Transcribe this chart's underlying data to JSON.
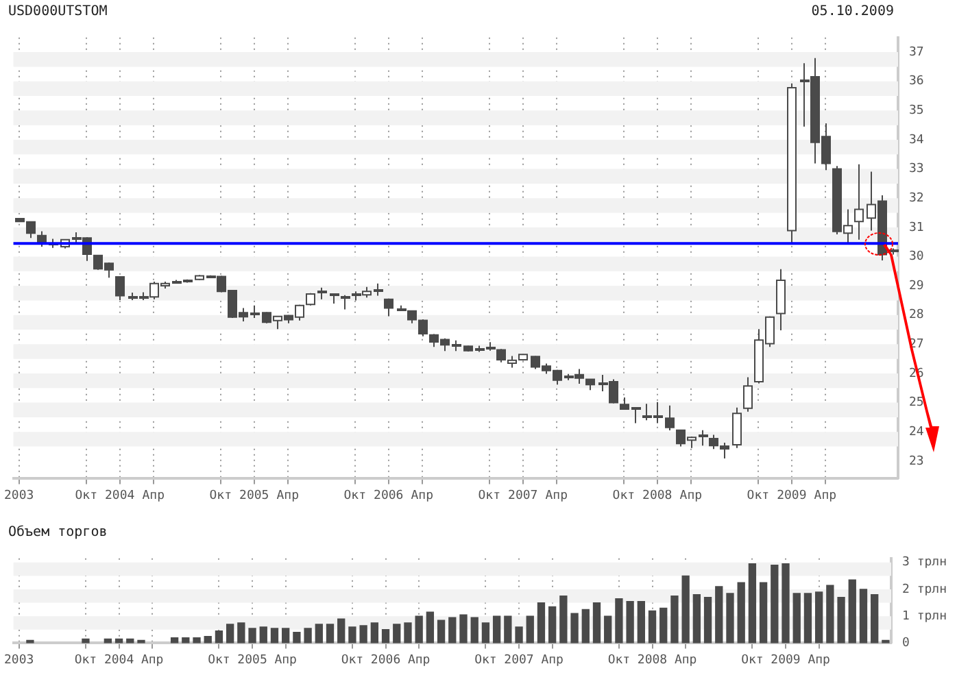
{
  "chart_data": [
    {
      "type": "candlestick",
      "title": "USD000UTSTOM",
      "subtitle": "05.10.2009",
      "color": "#4a4a4a",
      "colors": [
        "#4a4a4a",
        "#4a4a4a",
        "#4a4a4a",
        "#4a4a4a",
        "#ffffff",
        "#4a4a4a",
        "#4a4a4a",
        "#4a4a4a",
        "#4a4a4a",
        "#4a4a4a",
        "#4a4a4a",
        "#4a4a4a",
        "#ffffff",
        "#ffffff",
        "#4a4a4a",
        "#4a4a4a",
        "#ffffff",
        "#4a4a4a",
        "#4a4a4a",
        "#4a4a4a",
        "#4a4a4a",
        "#4a4a4a",
        "#4a4a4a",
        "#ffffff",
        "#4a4a4a",
        "#ffffff",
        "#ffffff",
        "#4a4a4a",
        "#4a4a4a",
        "#4a4a4a",
        "#4a4a4a",
        "#ffffff",
        "#4a4a4a",
        "#4a4a4a",
        "#4a4a4a",
        "#4a4a4a",
        "#4a4a4a",
        "#4a4a4a",
        "#4a4a4a",
        "#4a4a4a",
        "#4a4a4a",
        "#4a4a4a",
        "#4a4a4a",
        "#4a4a4a",
        "#ffffff",
        "#ffffff",
        "#4a4a4a",
        "#4a4a4a",
        "#4a4a4a",
        "#4a4a4a",
        "#4a4a4a",
        "#4a4a4a",
        "#4a4a4a",
        "#4a4a4a",
        "#4a4a4a",
        "#4a4a4a",
        "#4a4a4a",
        "#4a4a4a",
        "#4a4a4a",
        "#4a4a4a",
        "#ffffff",
        "#4a4a4a",
        "#4a4a4a",
        "#4a4a4a",
        "#ffffff",
        "#ffffff",
        "#ffffff",
        "#ffffff",
        "#ffffff",
        "#ffffff",
        "#4a4a4a",
        "#4a4a4a",
        "#4a4a4a",
        "#4a4a4a",
        "#ffffff",
        "#ffffff",
        "#ffffff",
        "#4a4a4a",
        "#4a4a4a"
      ],
      "categories": [
        "2003",
        null,
        null,
        null,
        null,
        null,
        "Окт",
        null,
        null,
        "2004",
        null,
        null,
        "Апр",
        null,
        null,
        null,
        null,
        null,
        "Окт",
        null,
        null,
        "2005",
        null,
        null,
        "Апр",
        null,
        null,
        null,
        null,
        null,
        "Окт",
        null,
        null,
        "2006",
        null,
        null,
        "Апр",
        null,
        null,
        null,
        null,
        null,
        "Окт",
        null,
        null,
        "2007",
        null,
        null,
        "Апр",
        null,
        null,
        null,
        null,
        null,
        "Окт",
        null,
        null,
        "2008",
        null,
        null,
        "Апр",
        null,
        null,
        null,
        null,
        null,
        "Окт",
        null,
        null,
        "2009",
        null,
        null,
        "Апр",
        null,
        null,
        null,
        null,
        null,
        null
      ],
      "ohlc": [
        [
          31.3,
          31.3,
          31.2,
          31.2
        ],
        [
          31.19,
          31.19,
          30.64,
          30.8
        ],
        [
          30.72,
          30.87,
          30.34,
          30.48
        ],
        [
          30.42,
          30.61,
          30.3,
          30.4
        ],
        [
          30.34,
          30.58,
          30.28,
          30.58
        ],
        [
          30.64,
          30.83,
          30.48,
          30.62
        ],
        [
          30.64,
          30.66,
          29.85,
          30.08
        ],
        [
          30.04,
          30.04,
          29.55,
          29.58
        ],
        [
          29.77,
          29.8,
          29.28,
          29.55
        ],
        [
          29.31,
          29.31,
          28.51,
          28.66
        ],
        [
          28.62,
          28.77,
          28.51,
          28.6
        ],
        [
          28.6,
          28.78,
          28.51,
          28.6
        ],
        [
          28.62,
          29.14,
          28.54,
          29.08
        ],
        [
          29.0,
          29.14,
          28.91,
          29.08
        ],
        [
          29.13,
          29.2,
          29.08,
          29.14
        ],
        [
          29.16,
          29.22,
          29.11,
          29.17
        ],
        [
          29.22,
          29.37,
          29.2,
          29.34
        ],
        [
          29.32,
          29.36,
          29.3,
          29.31
        ],
        [
          29.32,
          29.34,
          28.78,
          28.81
        ],
        [
          28.84,
          28.84,
          27.9,
          27.93
        ],
        [
          28.08,
          28.24,
          27.78,
          27.94
        ],
        [
          28.04,
          28.33,
          27.9,
          28.05
        ],
        [
          28.08,
          28.1,
          27.72,
          27.75
        ],
        [
          27.81,
          27.96,
          27.52,
          27.95
        ],
        [
          27.98,
          28.0,
          27.72,
          27.84
        ],
        [
          27.93,
          28.35,
          27.81,
          28.33
        ],
        [
          28.36,
          28.75,
          28.33,
          28.72
        ],
        [
          28.78,
          28.94,
          28.54,
          28.78
        ],
        [
          28.68,
          28.7,
          28.39,
          28.68
        ],
        [
          28.6,
          28.68,
          28.19,
          28.58
        ],
        [
          28.68,
          28.81,
          28.5,
          28.69
        ],
        [
          28.69,
          28.96,
          28.6,
          28.81
        ],
        [
          28.83,
          29.08,
          28.66,
          28.85
        ],
        [
          28.54,
          28.56,
          27.96,
          28.24
        ],
        [
          28.17,
          28.33,
          28.14,
          28.17
        ],
        [
          28.14,
          28.15,
          27.72,
          27.84
        ],
        [
          27.82,
          27.85,
          27.27,
          27.36
        ],
        [
          27.32,
          27.35,
          26.91,
          27.08
        ],
        [
          27.16,
          27.2,
          26.77,
          26.98
        ],
        [
          26.95,
          27.13,
          26.77,
          26.95
        ],
        [
          26.93,
          26.95,
          26.75,
          26.78
        ],
        [
          26.83,
          26.95,
          26.74,
          26.83
        ],
        [
          26.87,
          27.07,
          26.78,
          26.87
        ],
        [
          26.81,
          26.84,
          26.38,
          26.47
        ],
        [
          26.35,
          26.6,
          26.2,
          26.45
        ],
        [
          26.47,
          26.66,
          26.44,
          26.65
        ],
        [
          26.58,
          26.6,
          26.15,
          26.22
        ],
        [
          26.25,
          26.34,
          25.99,
          26.1
        ],
        [
          26.1,
          26.12,
          25.62,
          25.77
        ],
        [
          25.89,
          25.98,
          25.77,
          25.89
        ],
        [
          25.96,
          26.15,
          25.65,
          25.84
        ],
        [
          25.8,
          25.81,
          25.43,
          25.62
        ],
        [
          25.68,
          25.95,
          25.39,
          25.66
        ],
        [
          25.72,
          25.8,
          24.98,
          25.0
        ],
        [
          24.94,
          25.18,
          24.76,
          24.78
        ],
        [
          24.79,
          24.8,
          24.3,
          24.77
        ],
        [
          24.54,
          24.96,
          24.4,
          24.52
        ],
        [
          24.52,
          25.02,
          24.3,
          24.5
        ],
        [
          24.47,
          24.9,
          24.05,
          24.15
        ],
        [
          24.06,
          24.07,
          23.5,
          23.6
        ],
        [
          23.72,
          23.84,
          23.45,
          23.81
        ],
        [
          23.85,
          24.06,
          23.53,
          23.9
        ],
        [
          23.77,
          23.9,
          23.41,
          23.53
        ],
        [
          23.51,
          23.63,
          23.09,
          23.42
        ],
        [
          23.56,
          24.83,
          23.45,
          24.63
        ],
        [
          24.81,
          25.87,
          24.69,
          25.57
        ],
        [
          25.72,
          27.52,
          25.66,
          27.14
        ],
        [
          27.02,
          27.95,
          26.91,
          27.93
        ],
        [
          28.05,
          29.57,
          27.48,
          29.19
        ],
        [
          30.89,
          35.93,
          30.48,
          35.78
        ],
        [
          36.0,
          36.62,
          34.45,
          36.0
        ],
        [
          36.16,
          36.8,
          33.19,
          33.91
        ],
        [
          34.11,
          34.56,
          32.96,
          33.19
        ],
        [
          33.0,
          33.1,
          30.76,
          30.86
        ],
        [
          30.8,
          31.62,
          30.43,
          31.06
        ],
        [
          31.2,
          33.16,
          30.58,
          31.62
        ],
        [
          31.32,
          32.91,
          30.89,
          31.78
        ],
        [
          31.9,
          32.1,
          29.87,
          30.07
        ],
        [
          30.2,
          30.28,
          30.07,
          30.2
        ]
      ],
      "ylim": [
        22.4,
        37.5
      ],
      "yticks": [
        23,
        24,
        25,
        26,
        27,
        28,
        29,
        30,
        31,
        32,
        33,
        34,
        35,
        36,
        37
      ],
      "grid": "x",
      "bands": [
        {
          "axis": "y",
          "from": 23.5,
          "to": 24,
          "label": null,
          "color": "#f2f2f2"
        },
        {
          "axis": "y",
          "from": 24.5,
          "to": 25,
          "label": null,
          "color": "#f2f2f2"
        },
        {
          "axis": "y",
          "from": 25.5,
          "to": 26,
          "label": null,
          "color": "#f2f2f2"
        },
        {
          "axis": "y",
          "from": 26.5,
          "to": 27,
          "label": null,
          "color": "#f2f2f2"
        },
        {
          "axis": "y",
          "from": 27.5,
          "to": 28,
          "label": null,
          "color": "#f2f2f2"
        },
        {
          "axis": "y",
          "from": 28.5,
          "to": 29,
          "label": null,
          "color": "#f2f2f2"
        },
        {
          "axis": "y",
          "from": 29.5,
          "to": 30,
          "label": null,
          "color": "#f2f2f2"
        },
        {
          "axis": "y",
          "from": 30.5,
          "to": 31,
          "label": null,
          "color": "#f2f2f2"
        },
        {
          "axis": "y",
          "from": 31.5,
          "to": 32,
          "label": null,
          "color": "#f2f2f2"
        },
        {
          "axis": "y",
          "from": 32.5,
          "to": 33,
          "label": null,
          "color": "#f2f2f2"
        },
        {
          "axis": "y",
          "from": 33.5,
          "to": 34,
          "label": null,
          "color": "#f2f2f2"
        },
        {
          "axis": "y",
          "from": 34.5,
          "to": 35,
          "label": null,
          "color": "#f2f2f2"
        },
        {
          "axis": "y",
          "from": 35.5,
          "to": 36,
          "label": null,
          "color": "#f2f2f2"
        },
        {
          "axis": "y",
          "from": 36.5,
          "to": 37,
          "label": null,
          "color": "#f2f2f2"
        }
      ],
      "ref_lines": [
        {
          "axis": "y",
          "value": 30.45,
          "label": null,
          "color": "#0000ff"
        }
      ]
    },
    {
      "type": "bar",
      "title": "Объем торгов",
      "color": "#4a4a4a",
      "categories": [
        "2003",
        null,
        null,
        null,
        null,
        null,
        "Окт",
        null,
        null,
        "2004",
        null,
        null,
        "Апр",
        null,
        null,
        null,
        null,
        null,
        "Окт",
        null,
        null,
        "2005",
        null,
        null,
        "Апр",
        null,
        null,
        null,
        null,
        null,
        "Окт",
        null,
        null,
        "2006",
        null,
        null,
        "Апр",
        null,
        null,
        null,
        null,
        null,
        "Окт",
        null,
        null,
        "2007",
        null,
        null,
        "Апр",
        null,
        null,
        null,
        null,
        null,
        "Окт",
        null,
        null,
        "2008",
        null,
        null,
        "Апр",
        null,
        null,
        null,
        null,
        null,
        "Окт",
        null,
        null,
        "2009",
        null,
        null,
        "Апр",
        null,
        null,
        null,
        null,
        null,
        null
      ],
      "values": [
        null,
        0.1,
        null,
        null,
        null,
        null,
        0.15,
        null,
        0.15,
        0.15,
        0.15,
        0.1,
        null,
        null,
        0.2,
        0.2,
        0.2,
        0.25,
        0.45,
        0.7,
        0.75,
        0.55,
        0.6,
        0.55,
        0.55,
        0.4,
        0.55,
        0.7,
        0.7,
        0.9,
        0.6,
        0.65,
        0.75,
        0.5,
        0.7,
        0.75,
        1.0,
        1.15,
        0.85,
        0.95,
        1.05,
        0.95,
        0.75,
        1.0,
        1.0,
        0.6,
        1.0,
        1.5,
        1.35,
        1.75,
        1.1,
        1.25,
        1.5,
        1.0,
        1.65,
        1.55,
        1.55,
        1.2,
        1.3,
        1.75,
        2.5,
        1.8,
        1.7,
        2.1,
        1.85,
        2.25,
        2.95,
        2.25,
        2.9,
        2.95,
        1.85,
        1.85,
        1.9,
        2.15,
        1.7,
        2.35,
        2.0,
        1.8,
        0.1
      ],
      "ylim": [
        0,
        3.15
      ],
      "yticks": [
        0,
        {
          "value": 1,
          "label": "1 трлн"
        },
        {
          "value": 2,
          "label": "2 трлн"
        },
        {
          "value": 3,
          "label": "3 трлн"
        }
      ],
      "grid": "x",
      "bands": [
        {
          "axis": "y",
          "from": 0.5,
          "to": 1,
          "label": null,
          "color": "#f2f2f2"
        },
        {
          "axis": "y",
          "from": 1.5,
          "to": 2,
          "label": null,
          "color": "#f2f2f2"
        },
        {
          "axis": "y",
          "from": 2.5,
          "to": 3,
          "label": null,
          "color": "#f2f2f2"
        }
      ]
    }
  ]
}
